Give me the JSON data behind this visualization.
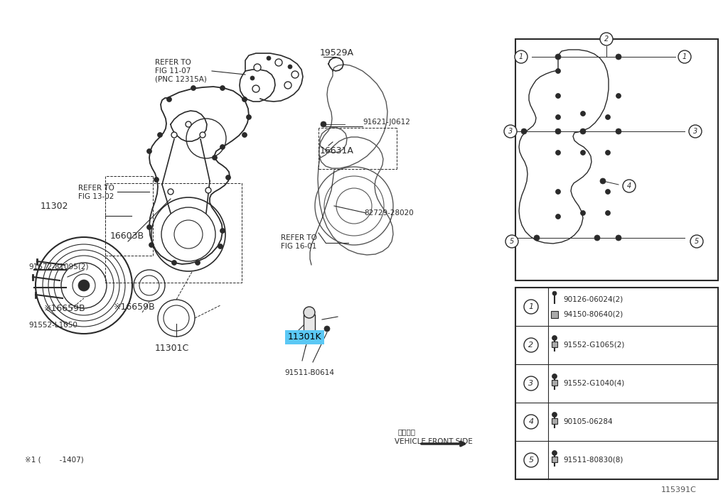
{
  "bg_color": "#f5f5f5",
  "fig_width": 10.24,
  "fig_height": 7.07,
  "diagram_code": "115391C",
  "footnote": "×1 (        -1407)",
  "highlight_color": "#5bc8f5",
  "parts_table": [
    {
      "num": "1",
      "items": [
        "90126-06024(2)",
        "94150-80640(2)"
      ]
    },
    {
      "num": "2",
      "items": [
        "91552-G1065(2)"
      ]
    },
    {
      "num": "3",
      "items": [
        "91552-G1040(4)"
      ]
    },
    {
      "num": "4",
      "items": [
        "90105-06284"
      ]
    },
    {
      "num": "5",
      "items": [
        "91511-80830(8)"
      ]
    }
  ],
  "lc": "#2a2a2a",
  "lw": 1.0
}
